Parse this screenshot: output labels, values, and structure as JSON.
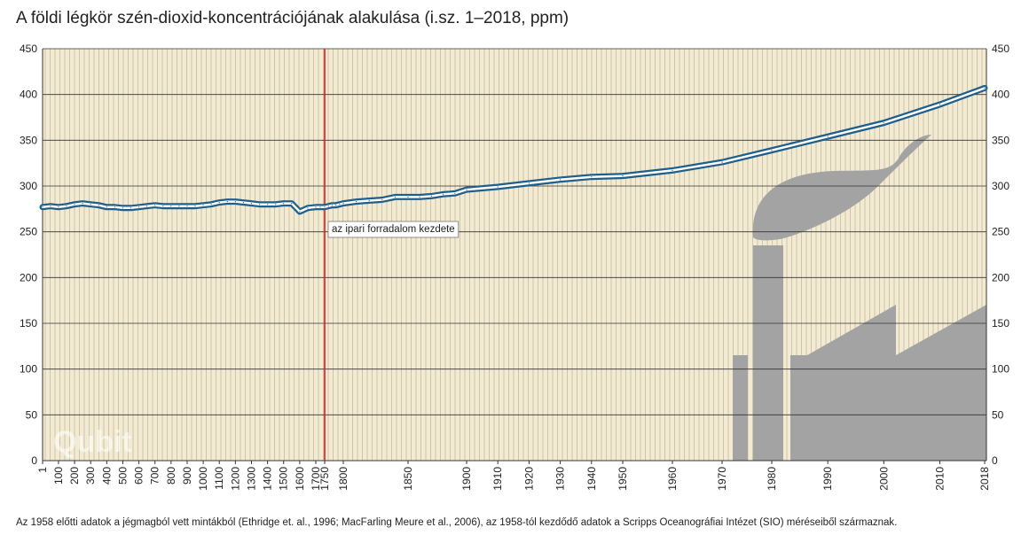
{
  "title": "A földi légkör szén-dioxid-koncentrációjának alakulása (i.sz. 1–2018, ppm)",
  "footnote": "Az 1958 előtti adatok a jégmagból vett mintákból (Ethridge et. al., 1996; MacFarling Meure et al., 2006), az 1958-tól kezdődő adatok a Scripps Oceanográfiai Intézet (SIO) méréseiből származnak.",
  "watermark": "Qubit",
  "colors": {
    "background": "#f2ead2",
    "gridline": "#b6ab8c",
    "line": "#1f5f8b",
    "annotation_line": "#d42020",
    "factory": "#a3a3a3"
  },
  "chart_data": {
    "type": "line",
    "title": "A földi légkör szén-dioxid-koncentrációjának alakulása (i.sz. 1–2018, ppm)",
    "xlabel": "",
    "ylabel": "",
    "ylim": [
      0,
      450
    ],
    "yticks": [
      0,
      50,
      100,
      150,
      200,
      250,
      300,
      350,
      400,
      450
    ],
    "x_tick_labels": [
      "1",
      "100",
      "200",
      "300",
      "400",
      "500",
      "600",
      "700",
      "800",
      "900",
      "1000",
      "1100",
      "1200",
      "1300",
      "1400",
      "1500",
      "1600",
      "1700",
      "1750",
      "1800",
      "1850",
      "1900",
      "1910",
      "1920",
      "1930",
      "1940",
      "1950",
      "1960",
      "1970",
      "1980",
      "1990",
      "2000",
      "2010",
      "2018"
    ],
    "grid": true,
    "legend": "none",
    "annotations": [
      {
        "label": "az ipari forradalom kezdete",
        "x": "1750"
      }
    ],
    "series": [
      {
        "values": [
          [
            "1",
            277
          ],
          [
            "50",
            278
          ],
          [
            "100",
            277
          ],
          [
            "150",
            278
          ],
          [
            "200",
            280
          ],
          [
            "250",
            281
          ],
          [
            "300",
            280
          ],
          [
            "350",
            279
          ],
          [
            "400",
            277
          ],
          [
            "450",
            277
          ],
          [
            "500",
            276
          ],
          [
            "550",
            276
          ],
          [
            "600",
            277
          ],
          [
            "650",
            278
          ],
          [
            "700",
            279
          ],
          [
            "750",
            278
          ],
          [
            "800",
            278
          ],
          [
            "850",
            278
          ],
          [
            "900",
            278
          ],
          [
            "950",
            278
          ],
          [
            "1000",
            279
          ],
          [
            "1050",
            280
          ],
          [
            "1100",
            282
          ],
          [
            "1150",
            283
          ],
          [
            "1200",
            283
          ],
          [
            "1250",
            282
          ],
          [
            "1300",
            281
          ],
          [
            "1350",
            280
          ],
          [
            "1400",
            280
          ],
          [
            "1450",
            280
          ],
          [
            "1500",
            281
          ],
          [
            "1550",
            281
          ],
          [
            "1600",
            272
          ],
          [
            "1650",
            276
          ],
          [
            "1700",
            277
          ],
          [
            "1725",
            277
          ],
          [
            "1750",
            277
          ],
          [
            "1760",
            278
          ],
          [
            "1770",
            279
          ],
          [
            "1780",
            279
          ],
          [
            "1790",
            280
          ],
          [
            "1800",
            281
          ],
          [
            "1810",
            283
          ],
          [
            "1820",
            284
          ],
          [
            "1830",
            285
          ],
          [
            "1840",
            288
          ],
          [
            "1850",
            288
          ],
          [
            "1860",
            288
          ],
          [
            "1870",
            289
          ],
          [
            "1880",
            291
          ],
          [
            "1890",
            292
          ],
          [
            "1900",
            296
          ],
          [
            "1910",
            299
          ],
          [
            "1920",
            303
          ],
          [
            "1930",
            307
          ],
          [
            "1940",
            310
          ],
          [
            "1950",
            311
          ],
          [
            "1960",
            317
          ],
          [
            "1970",
            326
          ],
          [
            "1980",
            339
          ],
          [
            "1990",
            354
          ],
          [
            "2000",
            369
          ],
          [
            "2010",
            389
          ],
          [
            "2018",
            407
          ]
        ]
      }
    ]
  }
}
